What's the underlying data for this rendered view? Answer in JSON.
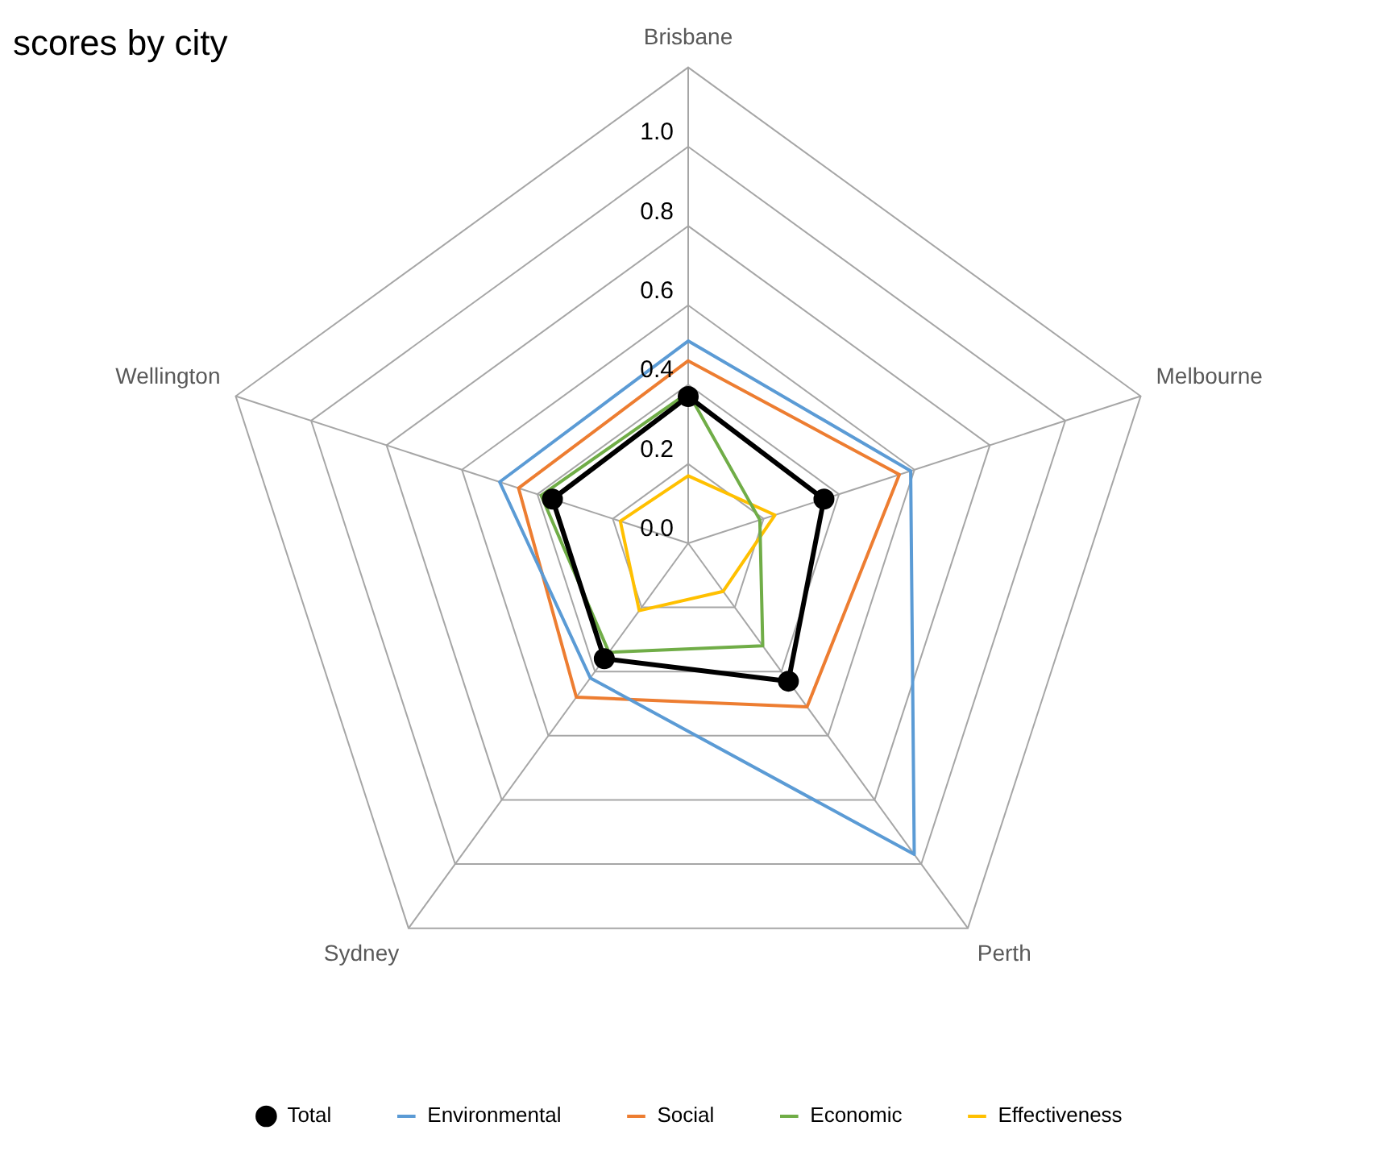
{
  "chart_data": {
    "type": "radar",
    "title": "scores by city",
    "categories": [
      "Brisbane",
      "Melbourne",
      "Perth",
      "Sydney",
      "Wellington"
    ],
    "series": [
      {
        "name": "Total",
        "color": "#000000",
        "marker": "circle",
        "values": [
          0.37,
          0.36,
          0.43,
          0.36,
          0.36
        ]
      },
      {
        "name": "Environmental",
        "color": "#5b9bd5",
        "marker": "none",
        "values": [
          0.51,
          0.59,
          0.97,
          0.42,
          0.5
        ]
      },
      {
        "name": "Social",
        "color": "#ed7d31",
        "marker": "none",
        "values": [
          0.46,
          0.56,
          0.51,
          0.48,
          0.45
        ]
      },
      {
        "name": "Economic",
        "color": "#70ad47",
        "marker": "none",
        "values": [
          0.38,
          0.19,
          0.32,
          0.34,
          0.39
        ]
      },
      {
        "name": "Effectiveness",
        "color": "#ffc000",
        "marker": "none",
        "values": [
          0.17,
          0.23,
          0.15,
          0.21,
          0.18
        ]
      }
    ],
    "ylim": [
      0,
      1.2
    ],
    "yticks": [
      {
        "value": 0,
        "label": "0.0"
      },
      0.2,
      0.4,
      0.6,
      0.8,
      {
        "value": 1,
        "label": "1.0"
      }
    ],
    "grid": true,
    "legend": "bottom"
  }
}
